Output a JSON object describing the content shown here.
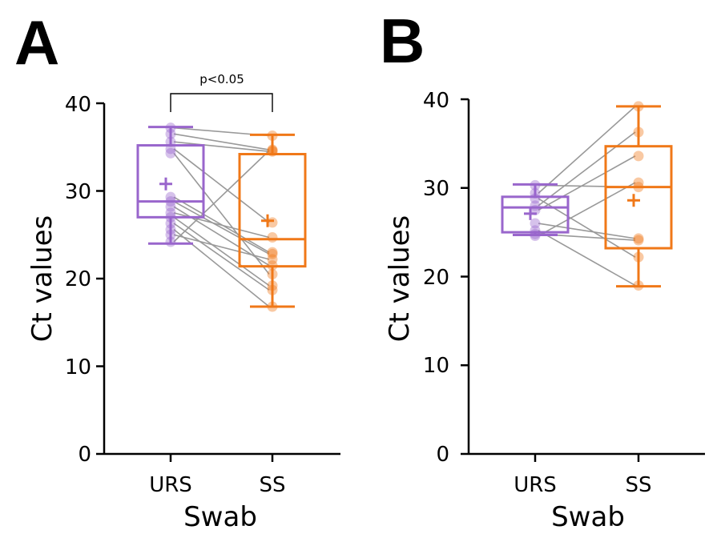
{
  "colors": {
    "urs": "#9966cc",
    "ss": "#f07818",
    "pair_line": "#999999",
    "axis": "#000000"
  },
  "chart_data": [
    {
      "panel_label": "A",
      "type": "box",
      "xlabel": "Swab",
      "ylabel": "Ct values",
      "ylim": [
        0,
        40
      ],
      "yticks": [
        "0",
        "10",
        "20",
        "30",
        "40"
      ],
      "categories": [
        "URS",
        "SS"
      ],
      "significance": {
        "label": "p<0.05",
        "between": [
          "URS",
          "SS"
        ]
      },
      "boxes": [
        {
          "name": "URS",
          "min": 24.0,
          "q1": 27.0,
          "median": 28.8,
          "q3": 35.2,
          "max": 37.3,
          "mean": 30.8
        },
        {
          "name": "SS",
          "min": 16.8,
          "q1": 21.4,
          "median": 24.5,
          "q3": 34.2,
          "max": 36.4,
          "mean": 26.6
        }
      ],
      "pairs": [
        [
          37.2,
          36.3
        ],
        [
          36.5,
          34.7
        ],
        [
          35.6,
          34.5
        ],
        [
          34.8,
          26.4
        ],
        [
          34.3,
          20.5
        ],
        [
          29.3,
          23.0
        ],
        [
          28.8,
          22.8
        ],
        [
          28.2,
          21.5
        ],
        [
          27.5,
          24.7
        ],
        [
          27.0,
          19.2
        ],
        [
          26.3,
          18.7
        ],
        [
          25.6,
          16.8
        ],
        [
          25.0,
          22.2
        ],
        [
          24.2,
          34.6
        ]
      ]
    },
    {
      "panel_label": "B",
      "type": "box",
      "xlabel": "Swab",
      "ylabel": "Ct values",
      "ylim": [
        0,
        40
      ],
      "yticks": [
        "0",
        "10",
        "20",
        "30",
        "40"
      ],
      "categories": [
        "URS",
        "SS"
      ],
      "boxes": [
        {
          "name": "URS",
          "min": 24.7,
          "q1": 25.0,
          "median": 27.8,
          "q3": 29.0,
          "max": 30.4,
          "mean": 27.1
        },
        {
          "name": "SS",
          "min": 18.9,
          "q1": 23.2,
          "median": 30.1,
          "q3": 34.7,
          "max": 39.2,
          "mean": 28.6
        }
      ],
      "pairs": [
        [
          30.3,
          30.1
        ],
        [
          29.4,
          39.2
        ],
        [
          28.8,
          22.2
        ],
        [
          28.0,
          36.3
        ],
        [
          27.5,
          33.6
        ],
        [
          26.0,
          24.3
        ],
        [
          25.2,
          19.0
        ],
        [
          24.8,
          24.1
        ],
        [
          24.6,
          30.6
        ]
      ]
    }
  ]
}
